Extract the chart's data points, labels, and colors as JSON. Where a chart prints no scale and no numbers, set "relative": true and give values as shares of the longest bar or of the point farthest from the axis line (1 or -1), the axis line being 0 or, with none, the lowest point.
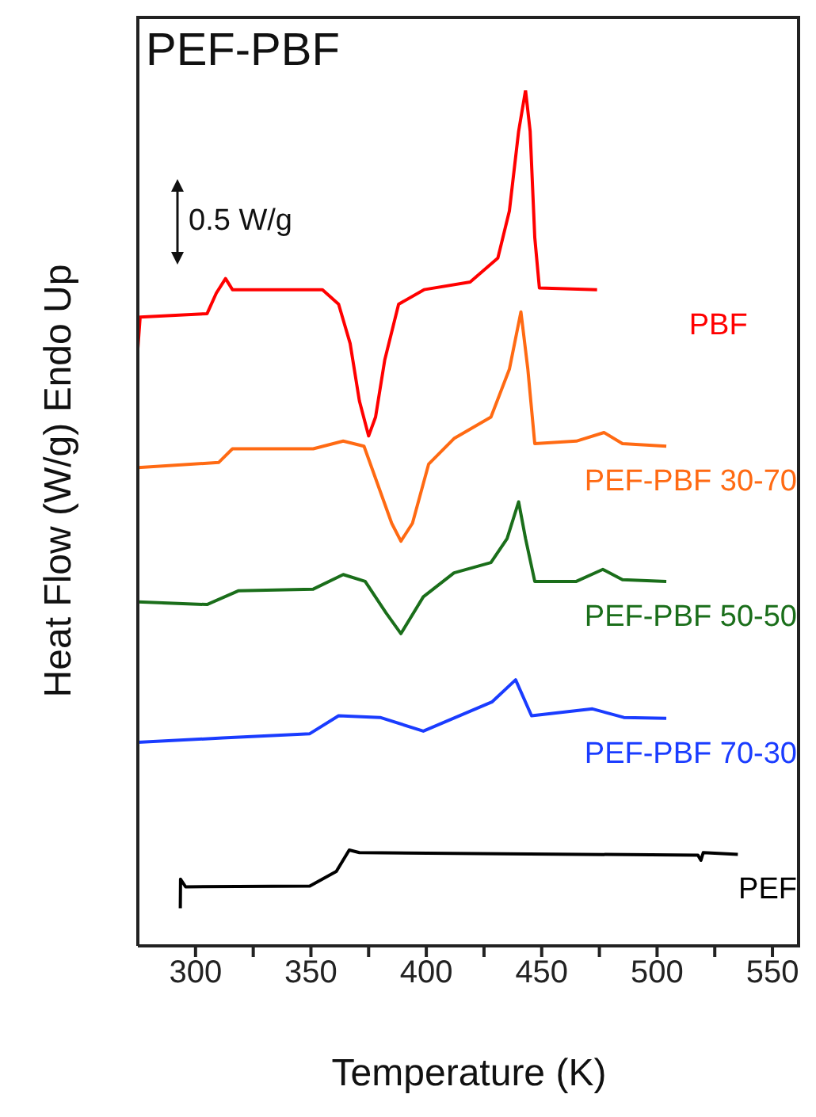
{
  "chart_data": {
    "type": "line",
    "title": "PEF-PBF",
    "xlabel": "Temperature (K)",
    "ylabel": "Heat Flow (W/g) Endo Up",
    "relative": true,
    "annotations": [
      "0.5 W/g"
    ],
    "xlim": [
      275,
      562
    ],
    "xticks": [
      300,
      {
        "value": 325,
        "label": null
      },
      350,
      {
        "value": 375,
        "label": null
      },
      400,
      {
        "value": 425,
        "label": null
      },
      450,
      {
        "value": 475,
        "label": null
      },
      500,
      {
        "value": 525,
        "label": null
      },
      550
    ],
    "series": [
      {
        "name": "PBF",
        "color": "#ff0000",
        "x": [
          275,
          276,
          305,
          309,
          313,
          316,
          355,
          362,
          367,
          371,
          375,
          378,
          382,
          388,
          399,
          419,
          431,
          436,
          440,
          443,
          445,
          447,
          449,
          474
        ],
        "values": [
          0.698,
          0.735,
          0.739,
          0.763,
          0.78,
          0.767,
          0.767,
          0.75,
          0.704,
          0.637,
          0.596,
          0.618,
          0.685,
          0.75,
          0.767,
          0.776,
          0.804,
          0.859,
          0.952,
          1,
          0.952,
          0.828,
          0.769,
          0.767
        ]
      },
      {
        "name": "PEF-PBF 30-70",
        "color": "#ff6a13",
        "x": [
          275,
          310,
          316,
          351,
          364,
          373,
          385,
          389,
          394,
          401,
          412,
          428,
          436,
          441,
          444,
          447,
          465,
          477,
          485,
          504
        ],
        "values": [
          0.559,
          0.565,
          0.581,
          0.581,
          0.59,
          0.584,
          0.494,
          0.473,
          0.494,
          0.563,
          0.593,
          0.618,
          0.674,
          0.741,
          0.674,
          0.587,
          0.59,
          0.6,
          0.587,
          0.584
        ]
      },
      {
        "name": "PEF-PBF 50-50",
        "color": "#1a6e1a",
        "x": [
          275,
          305,
          318.5,
          351,
          364,
          373.5,
          382.6,
          389,
          398.7,
          412,
          428,
          435,
          440,
          443,
          447,
          465,
          476.5,
          485,
          504
        ],
        "values": [
          0.402,
          0.399,
          0.415,
          0.417,
          0.434,
          0.426,
          0.389,
          0.365,
          0.408,
          0.436,
          0.448,
          0.476,
          0.519,
          0.476,
          0.426,
          0.426,
          0.44,
          0.428,
          0.426
        ]
      },
      {
        "name": "PEF-PBF 70-30",
        "color": "#1a3cff",
        "x": [
          275,
          311.7,
          349.5,
          362,
          380,
          398.7,
          428.4,
          438.7,
          445.6,
          472,
          485.6,
          504
        ],
        "values": [
          0.238,
          0.243,
          0.248,
          0.269,
          0.267,
          0.251,
          0.285,
          0.311,
          0.269,
          0.277,
          0.267,
          0.266
        ]
      },
      {
        "name": "PEF",
        "color": "#000000",
        "x": [
          293.4,
          293.5,
          295.7,
          349.5,
          361,
          366.6,
          371,
          517.7,
          519,
          520,
          535
        ],
        "values": [
          0.044,
          0.078,
          0.069,
          0.07,
          0.087,
          0.112,
          0.109,
          0.106,
          0.1,
          0.109,
          0.107
        ]
      }
    ]
  }
}
